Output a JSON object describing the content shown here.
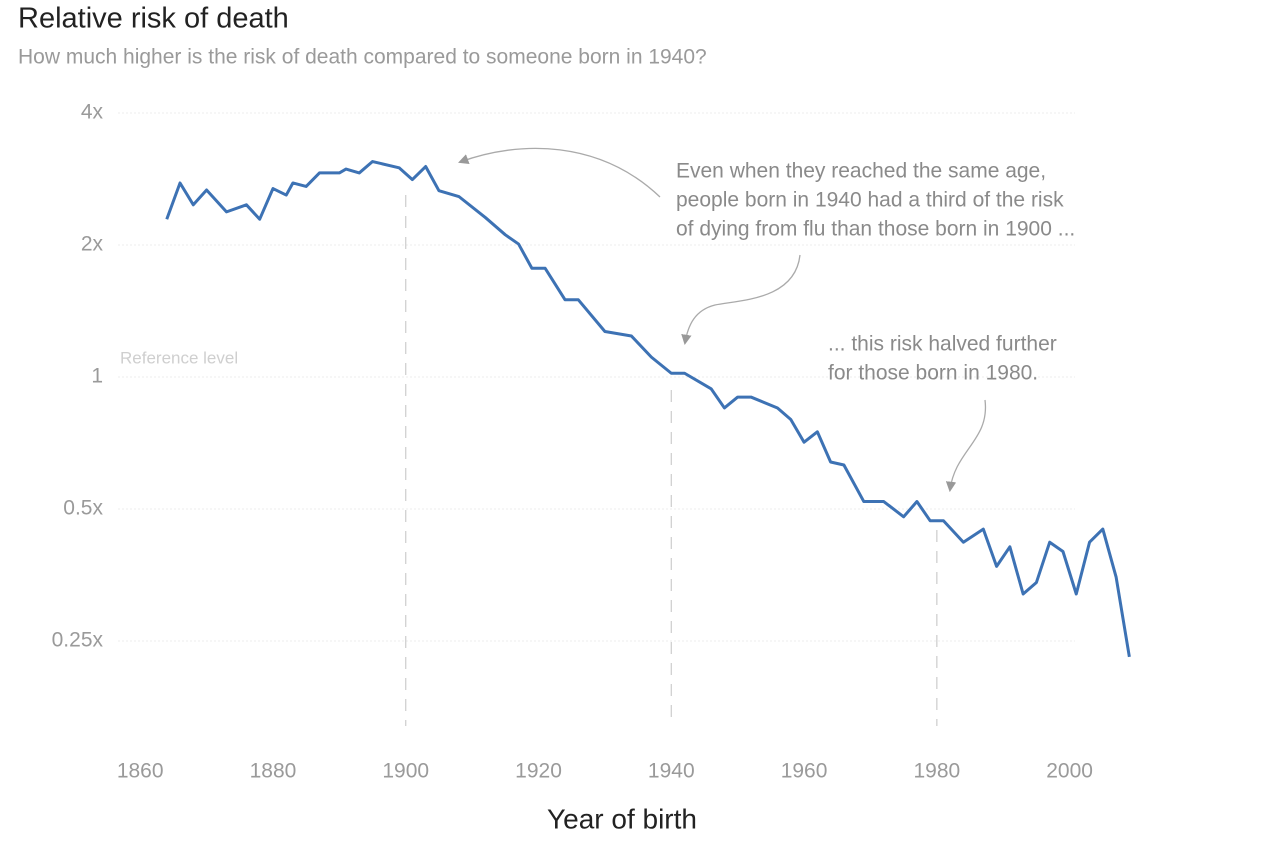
{
  "chart_data": {
    "type": "line",
    "title": "Relative risk of death",
    "subtitle": "How much higher is the risk of death compared to someone born in 1940?",
    "x_label": "Year of birth",
    "reference_label": "Reference level",
    "annotations": [
      [
        "Even when they reached the same age,",
        "people born in 1940 had a third of the risk",
        "of dying from flu than those born in 1900 ..."
      ],
      [
        "... this risk halved further",
        "for those born in 1980."
      ]
    ],
    "vlines": [
      1900,
      1940,
      1980
    ],
    "log_y": true,
    "grid": true,
    "xlim": [
      1855,
      2010
    ],
    "ylim": [
      0.16,
      4
    ],
    "xticks": [
      1860,
      1880,
      1900,
      1920,
      1940,
      1960,
      1980,
      2000
    ],
    "yticks": [
      {
        "value": 0.25,
        "label": "0.25x"
      },
      {
        "value": 0.5,
        "label": "0.5x"
      },
      {
        "value": 1,
        "label": "1"
      },
      {
        "value": 2,
        "label": "2x"
      },
      {
        "value": 4,
        "label": "4x"
      }
    ],
    "x": [
      1864,
      1866,
      1868,
      1870,
      1873,
      1876,
      1878,
      1880,
      1882,
      1883,
      1885,
      1887,
      1890,
      1891,
      1893,
      1895,
      1899,
      1901,
      1903,
      1905,
      1908,
      1912,
      1915,
      1917,
      1919,
      1921,
      1924,
      1926,
      1930,
      1934,
      1937,
      1940,
      1942,
      1946,
      1948,
      1950,
      1952,
      1956,
      1958,
      1960,
      1962,
      1964,
      1966,
      1969,
      1972,
      1975,
      1977,
      1979,
      1981,
      1984,
      1987,
      1989,
      1991,
      1993,
      1995,
      1997,
      1999,
      2001,
      2003,
      2005,
      2007,
      2009
    ],
    "series": [
      {
        "name": "Relative risk",
        "color": "#3d72b4",
        "values": [
          2.29,
          2.77,
          2.47,
          2.67,
          2.38,
          2.47,
          2.29,
          2.69,
          2.6,
          2.77,
          2.72,
          2.92,
          2.92,
          2.98,
          2.92,
          3.1,
          3.0,
          2.82,
          3.02,
          2.66,
          2.58,
          2.31,
          2.11,
          2.01,
          1.77,
          1.77,
          1.5,
          1.5,
          1.27,
          1.24,
          1.11,
          1.02,
          1.02,
          0.94,
          0.85,
          0.9,
          0.9,
          0.85,
          0.8,
          0.71,
          0.75,
          0.64,
          0.63,
          0.52,
          0.52,
          0.48,
          0.52,
          0.47,
          0.47,
          0.42,
          0.45,
          0.37,
          0.41,
          0.32,
          0.34,
          0.42,
          0.4,
          0.32,
          0.42,
          0.45,
          0.35,
          0.23
        ]
      }
    ]
  }
}
